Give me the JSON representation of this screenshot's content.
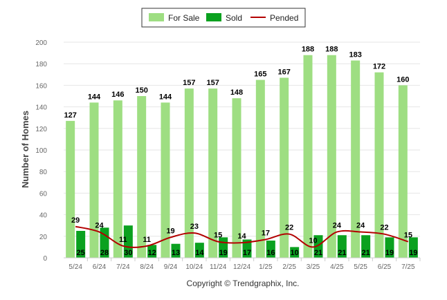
{
  "chart_data": {
    "type": "bar",
    "categories": [
      "5/24",
      "6/24",
      "7/24",
      "8/24",
      "9/24",
      "10/24",
      "11/24",
      "12/24",
      "1/25",
      "2/25",
      "3/25",
      "4/25",
      "5/25",
      "6/25",
      "7/25"
    ],
    "series": [
      {
        "name": "For Sale",
        "type": "bar",
        "color": "#9ede82",
        "values": [
          127,
          144,
          146,
          150,
          144,
          157,
          157,
          148,
          165,
          167,
          188,
          188,
          183,
          172,
          160
        ]
      },
      {
        "name": "Sold",
        "type": "bar",
        "color": "#0aa11f",
        "values": [
          25,
          28,
          30,
          12,
          13,
          14,
          19,
          17,
          16,
          10,
          21,
          21,
          21,
          19,
          19
        ]
      },
      {
        "name": "Pended",
        "type": "line",
        "color": "#b30000",
        "values": [
          29,
          24,
          11,
          11,
          19,
          23,
          15,
          14,
          17,
          22,
          10,
          24,
          24,
          22,
          15
        ]
      }
    ],
    "xlabel": "",
    "ylabel": "Number of Homes",
    "ylim": [
      0,
      200
    ],
    "yticks": [
      0,
      20,
      40,
      60,
      80,
      100,
      120,
      140,
      160,
      180,
      200
    ],
    "grid": true,
    "legend_position": "top-center",
    "footer": "Copyright © Trendgraphix, Inc."
  }
}
